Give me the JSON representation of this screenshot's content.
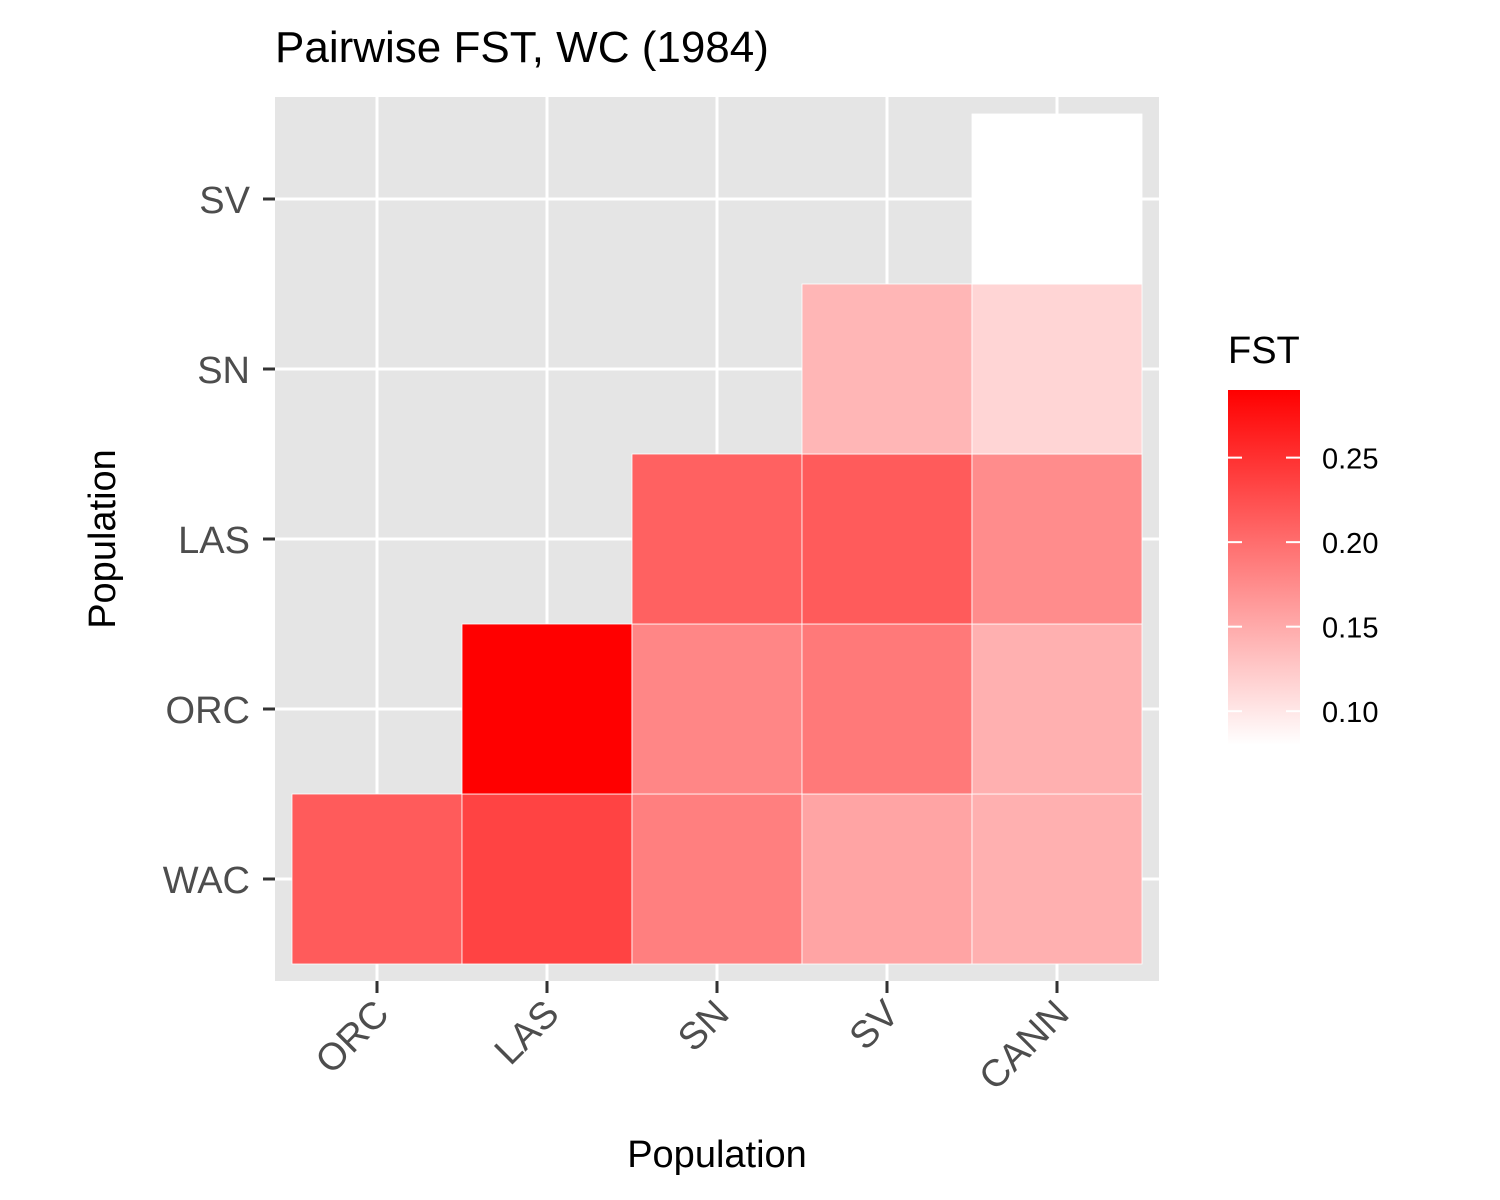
{
  "chart_data": {
    "type": "heatmap",
    "title": "Pairwise FST, WC (1984)",
    "xlabel": "Population",
    "ylabel": "Population",
    "x_categories": [
      "ORC",
      "LAS",
      "SN",
      "SV",
      "CANN"
    ],
    "y_categories": [
      "WAC",
      "ORC",
      "LAS",
      "SN",
      "SV"
    ],
    "cells": [
      {
        "x": "ORC",
        "y": "WAC",
        "value": 0.215
      },
      {
        "x": "LAS",
        "y": "WAC",
        "value": 0.235
      },
      {
        "x": "SN",
        "y": "WAC",
        "value": 0.185
      },
      {
        "x": "SV",
        "y": "WAC",
        "value": 0.155
      },
      {
        "x": "CANN",
        "y": "WAC",
        "value": 0.145
      },
      {
        "x": "LAS",
        "y": "ORC",
        "value": 0.29
      },
      {
        "x": "SN",
        "y": "ORC",
        "value": 0.18
      },
      {
        "x": "SV",
        "y": "ORC",
        "value": 0.19
      },
      {
        "x": "CANN",
        "y": "ORC",
        "value": 0.145
      },
      {
        "x": "SN",
        "y": "LAS",
        "value": 0.21
      },
      {
        "x": "SV",
        "y": "LAS",
        "value": 0.215
      },
      {
        "x": "CANN",
        "y": "LAS",
        "value": 0.175
      },
      {
        "x": "SV",
        "y": "SN",
        "value": 0.14
      },
      {
        "x": "CANN",
        "y": "SN",
        "value": 0.115
      },
      {
        "x": "CANN",
        "y": "SV",
        "value": 0.08
      }
    ],
    "legend": {
      "title": "FST",
      "ticks": [
        "0.10",
        "0.15",
        "0.20",
        "0.25"
      ],
      "range": [
        0.08,
        0.29
      ],
      "low_color": "#ffffff",
      "high_color": "#ff0000",
      "placement": "right"
    },
    "grid": true,
    "panel_background": "#e5e5e5"
  }
}
